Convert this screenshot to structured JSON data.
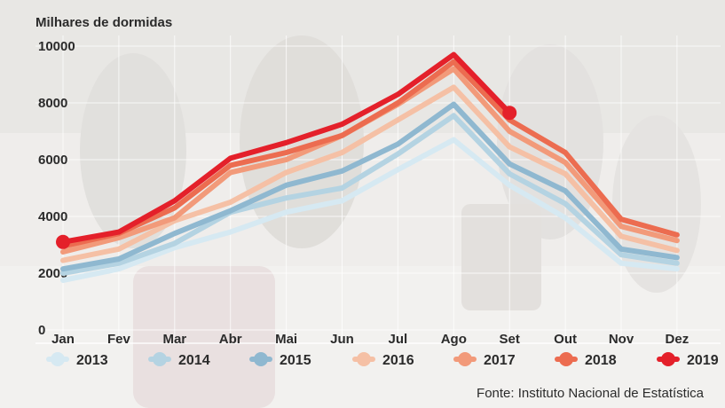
{
  "chart_data": {
    "type": "line",
    "title": "",
    "ylabel": "Milhares de dormidas",
    "xlabel": "",
    "source": "Fonte: Instituto Nacional de Estatística",
    "categories": [
      "Jan",
      "Fev",
      "Mar",
      "Abr",
      "Mai",
      "Jun",
      "Jul",
      "Ago",
      "Set",
      "Out",
      "Nov",
      "Dez"
    ],
    "ylim": [
      0,
      10000
    ],
    "yticks": [
      "10000",
      "8000",
      "6000",
      "4000",
      "2000",
      "0"
    ],
    "grid": true,
    "legend_position": "bottom",
    "series": [
      {
        "name": "2013",
        "color": "#d6e9f2",
        "values": [
          1750,
          2150,
          2900,
          3450,
          4150,
          4550,
          5650,
          6700,
          5100,
          3950,
          2350,
          2150
        ]
      },
      {
        "name": "2014",
        "color": "#b4d3e2",
        "values": [
          2000,
          2350,
          3050,
          4150,
          4650,
          5000,
          6200,
          7550,
          5500,
          4450,
          2650,
          2350
        ]
      },
      {
        "name": "2015",
        "color": "#8fb8d0",
        "values": [
          2150,
          2500,
          3400,
          4200,
          5100,
          5600,
          6550,
          7950,
          5850,
          4900,
          2850,
          2550
        ]
      },
      {
        "name": "2016",
        "color": "#f5c0a5",
        "values": [
          2450,
          2850,
          3850,
          4500,
          5550,
          6250,
          7400,
          8550,
          6450,
          5500,
          3300,
          2800
        ]
      },
      {
        "name": "2017",
        "color": "#f29a7a",
        "values": [
          2750,
          3250,
          3950,
          5550,
          6000,
          6850,
          7950,
          9200,
          7000,
          5900,
          3650,
          3150
        ]
      },
      {
        "name": "2018",
        "color": "#ec6c50",
        "values": [
          2950,
          3400,
          4300,
          5800,
          6250,
          6850,
          8000,
          9450,
          7400,
          6250,
          3900,
          3350
        ]
      },
      {
        "name": "2019",
        "color": "#e4202a",
        "values": [
          3100,
          3450,
          4550,
          6050,
          6600,
          7250,
          8300,
          9700,
          7650,
          null,
          null,
          null
        ]
      }
    ]
  }
}
